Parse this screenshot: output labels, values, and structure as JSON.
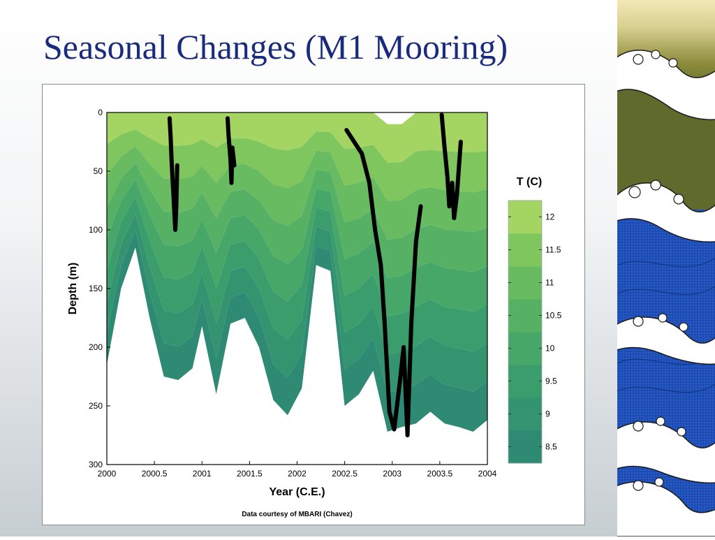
{
  "slide": {
    "title": "Seasonal Changes (M1 Mooring)"
  },
  "colors": {
    "title": "#1b2b7c",
    "wave_blue": "#1f4fb8",
    "wave_olive": "#8a8a3a",
    "wave_cream": "#f2e9b8",
    "isotherm": "#000000"
  },
  "chart_data": {
    "type": "heatmap",
    "title": "",
    "xlabel": "Year (C.E.)",
    "ylabel": "Depth (m)",
    "xlim": [
      2000,
      2004
    ],
    "ylim": [
      300,
      0
    ],
    "x_ticks": [
      2000,
      2000.5,
      2001,
      2001.5,
      2002,
      2002.5,
      2003,
      2003.5,
      2004
    ],
    "x_tick_labels": [
      "2000",
      "2000.5",
      "2001",
      "2001.5",
      "2002",
      "2002.5",
      "2003",
      "2003.5",
      "2004"
    ],
    "y_ticks": [
      0,
      50,
      100,
      150,
      200,
      250,
      300
    ],
    "y_tick_labels": [
      "0",
      "50",
      "100",
      "150",
      "200",
      "250",
      "300"
    ],
    "colorbar": {
      "title": "T (C)",
      "levels": [
        8.5,
        9,
        9.5,
        10,
        10.5,
        11,
        11.5,
        12
      ],
      "tick_labels": [
        "8.5",
        "9",
        "9.5",
        "10",
        "10.5",
        "11",
        "11.5",
        "12"
      ],
      "colors": [
        "#2f8a73",
        "#34946f",
        "#3b9d6c",
        "#47a768",
        "#56b164",
        "#68bb60",
        "#80c65f",
        "#a4d462"
      ]
    },
    "coverage": {
      "note_caption": "Data courtesy of MBARI (Chavez)",
      "x": [
        2000.0,
        2000.15,
        2000.3,
        2000.45,
        2000.6,
        2000.75,
        2000.9,
        2001.0,
        2001.15,
        2001.3,
        2001.45,
        2001.6,
        2001.75,
        2001.9,
        2002.05,
        2002.2,
        2002.35,
        2002.5,
        2002.65,
        2002.8,
        2002.95,
        2003.1,
        2003.25,
        2003.4,
        2003.55,
        2003.7,
        2003.85,
        2004.0
      ],
      "top_depth": [
        0,
        0,
        0,
        0,
        0,
        0,
        0,
        0,
        0,
        0,
        0,
        0,
        0,
        0,
        0,
        0,
        0,
        0,
        0,
        0,
        10,
        10,
        0,
        0,
        0,
        0,
        0,
        0
      ],
      "bottom_depth": [
        215,
        150,
        115,
        175,
        225,
        228,
        218,
        182,
        240,
        180,
        175,
        200,
        245,
        258,
        235,
        130,
        135,
        250,
        240,
        220,
        272,
        268,
        265,
        255,
        265,
        268,
        272,
        262
      ]
    },
    "isotherm_segments": [
      {
        "x": [
          2000.66,
          2000.67,
          2000.68,
          2000.69,
          2000.7,
          2000.71,
          2000.72,
          2000.73,
          2000.74
        ],
        "depth": [
          5,
          20,
          40,
          55,
          70,
          85,
          100,
          80,
          45
        ]
      },
      {
        "x": [
          2001.27,
          2001.28,
          2001.3,
          2001.31,
          2001.32,
          2001.34
        ],
        "depth": [
          5,
          20,
          40,
          60,
          30,
          45
        ]
      },
      {
        "x": [
          2002.52,
          2002.6,
          2002.68,
          2002.76,
          2002.82,
          2002.88,
          2002.92,
          2002.97,
          2003.02,
          2003.08,
          2003.12,
          2003.16,
          2003.2,
          2003.25,
          2003.3
        ],
        "depth": [
          15,
          25,
          35,
          60,
          100,
          130,
          180,
          255,
          270,
          230,
          200,
          275,
          180,
          110,
          80
        ]
      },
      {
        "x": [
          2003.52,
          2003.55,
          2003.58,
          2003.6,
          2003.63,
          2003.65,
          2003.68,
          2003.72
        ],
        "depth": [
          2,
          30,
          55,
          80,
          60,
          90,
          70,
          25
        ]
      }
    ]
  }
}
